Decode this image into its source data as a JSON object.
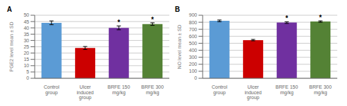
{
  "chart_data": [
    {
      "type": "bar",
      "title": "A",
      "categories": [
        "Control group",
        "Ulcer induced group",
        "BRFE 150 mg/kg",
        "BRFE 300 mg/kg"
      ],
      "values": [
        44,
        24,
        40,
        43
      ],
      "errors": [
        1.5,
        1.2,
        1.5,
        1.0
      ],
      "colors": [
        "#5B9BD5",
        "#CC0000",
        "#7030A0",
        "#548235"
      ],
      "ylabel": "PGE2 level mean ± SD",
      "ylim": [
        0,
        50
      ],
      "yticks": [
        0,
        5,
        10,
        15,
        20,
        25,
        30,
        35,
        40,
        45,
        50
      ],
      "annotations": [
        null,
        null,
        "*",
        "*"
      ],
      "grid": true
    },
    {
      "type": "bar",
      "title": "B",
      "categories": [
        "Control group",
        "Ulcer induced group",
        "BRFE 150 mg/kg",
        "BRFE 300 mg/kg"
      ],
      "values": [
        820,
        545,
        795,
        810
      ],
      "errors": [
        12,
        10,
        12,
        10
      ],
      "colors": [
        "#5B9BD5",
        "#CC0000",
        "#7030A0",
        "#548235"
      ],
      "ylabel": "NO level mean ± SD",
      "ylim": [
        0,
        900
      ],
      "yticks": [
        0,
        100,
        200,
        300,
        400,
        500,
        600,
        700,
        800,
        900
      ],
      "annotations": [
        null,
        null,
        "*",
        "*"
      ],
      "grid": true
    }
  ]
}
